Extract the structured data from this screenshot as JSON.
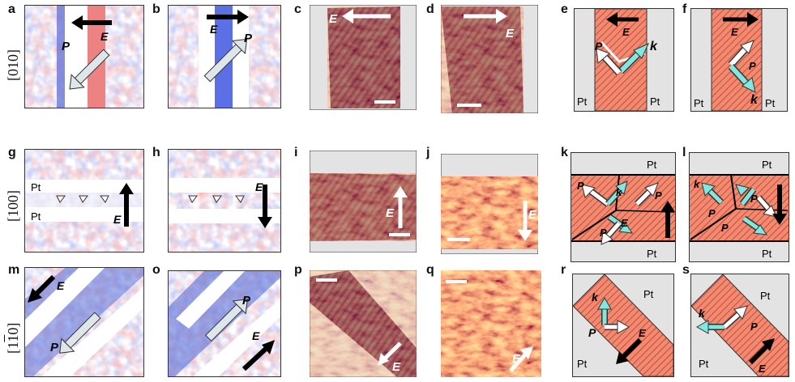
{
  "panel_letters": [
    "a",
    "b",
    "c",
    "d",
    "e",
    "f",
    "g",
    "h",
    "i",
    "j",
    "k",
    "l",
    "m",
    "o",
    "p",
    "q",
    "r",
    "s"
  ],
  "row_labels": [
    "[010]",
    "[100]",
    "[110]"
  ],
  "symbols": {
    "E": "E",
    "P": "P",
    "k": "k",
    "Pt": "Pt"
  },
  "colors": {
    "blue": "#6070d8",
    "red": "#e26d6d",
    "salmon": "#f08a70",
    "cyan": "#7fe8e0",
    "gray": "#e3e3e3",
    "dark": "#1e1020",
    "orange": "#f0a030"
  }
}
